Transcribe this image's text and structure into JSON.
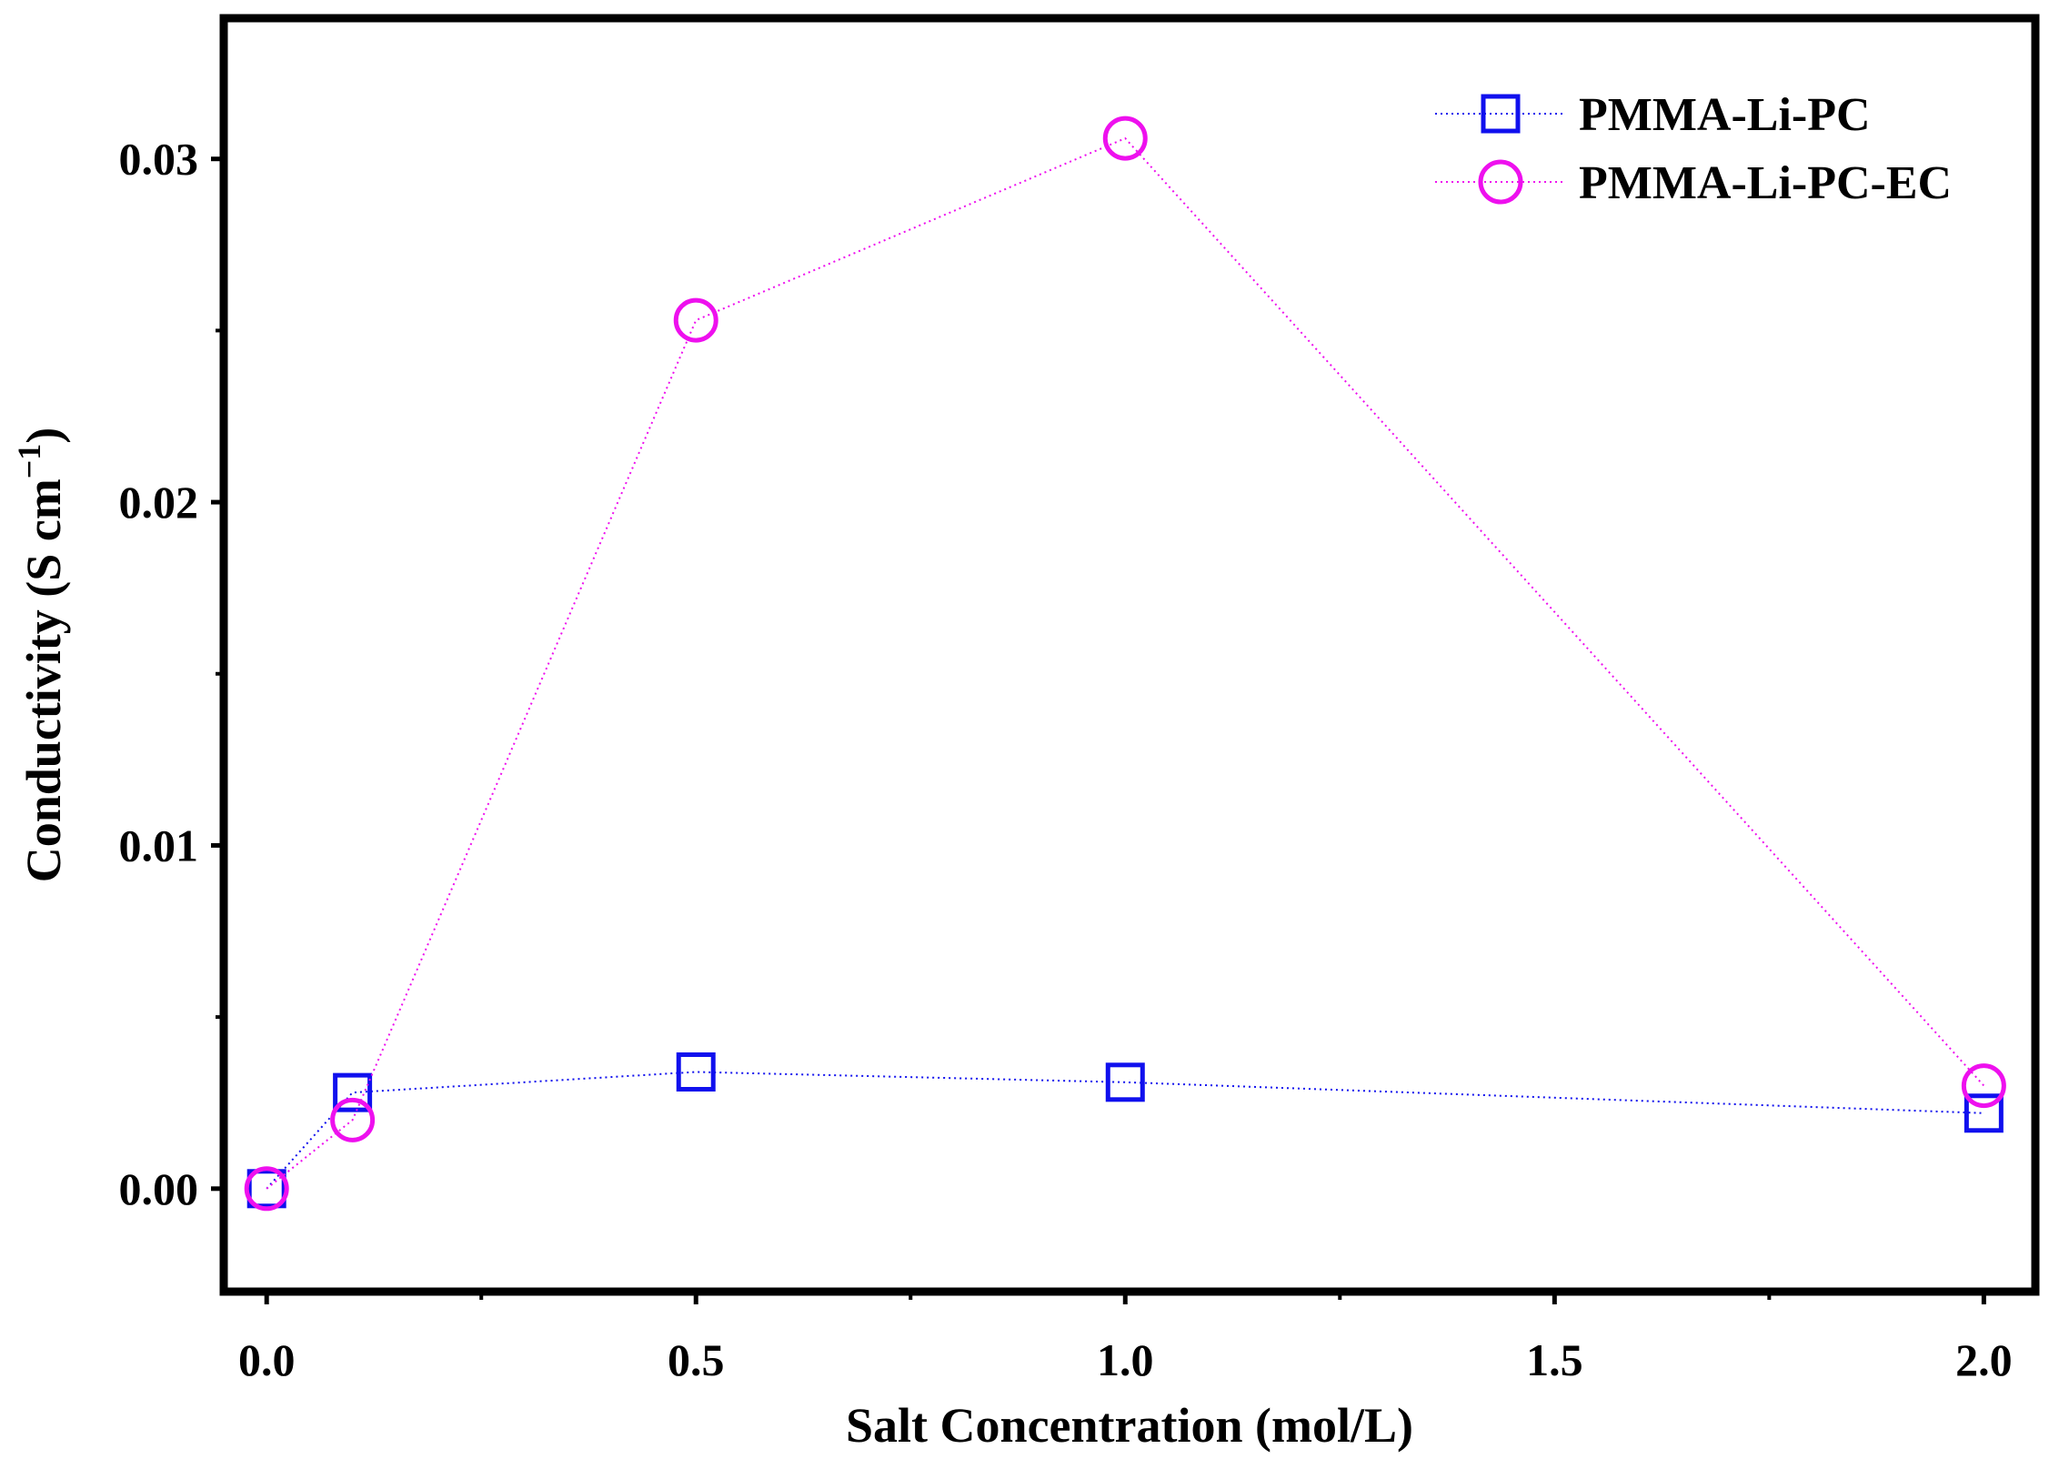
{
  "chart_data": {
    "type": "scatter",
    "title": "",
    "xlabel": "Salt Concentration (mol/L)",
    "ylabel_main": "Conductivity (S cm",
    "ylabel_sup": "−1",
    "ylabel_close": ")",
    "xlim": [
      -0.05,
      2.06
    ],
    "ylim": [
      -0.003,
      0.0341
    ],
    "xticks": [
      0.0,
      0.5,
      1.0,
      1.5,
      2.0
    ],
    "xtick_labels": [
      "0.0",
      "0.5",
      "1.0",
      "1.5",
      "2.0"
    ],
    "yticks": [
      0.0,
      0.01,
      0.02,
      0.03
    ],
    "ytick_labels": [
      "0.00",
      "0.01",
      "0.02",
      "0.03"
    ],
    "legend_position": "top-right",
    "series": [
      {
        "name": "PMMA-Li-PC",
        "marker": "square",
        "color": "#1010ee",
        "x": [
          0.0,
          0.1,
          0.5,
          1.0,
          2.0
        ],
        "y": [
          0.0,
          0.0028,
          0.0034,
          0.0031,
          0.0022
        ]
      },
      {
        "name": "PMMA-Li-PC-EC",
        "marker": "circle",
        "color": "#ee10ee",
        "x": [
          0.0,
          0.1,
          0.5,
          1.0,
          2.0
        ],
        "y": [
          0.0,
          0.002,
          0.0253,
          0.0306,
          0.003
        ]
      }
    ]
  }
}
